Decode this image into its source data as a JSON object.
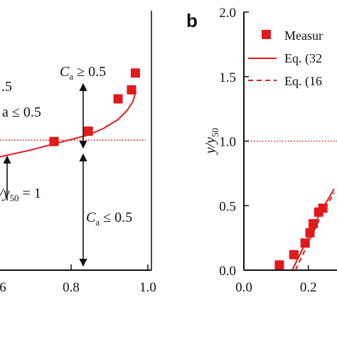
{
  "chart_data": [
    {
      "type": "scatter",
      "panel": "a",
      "panel_label_visible": false,
      "xlabel": "",
      "ylabel": "",
      "xlim": [
        0.5,
        1.0
      ],
      "ylim": [
        -0.05,
        2.0
      ],
      "x_ticks": [
        "6",
        "0.8",
        "1.0"
      ],
      "series": [
        {
          "name": "",
          "style": "square-markers",
          "color": "#e0191b",
          "points": [
            [
              0.685,
              0.99
            ],
            [
              0.8,
              1.07
            ],
            [
              0.9,
              1.32
            ],
            [
              0.945,
              1.39
            ],
            [
              0.958,
              1.52
            ]
          ]
        },
        {
          "name": "",
          "style": "solid-line",
          "color": "#e0191b",
          "points": [
            [
              0.5,
              0.87
            ],
            [
              0.6,
              0.92
            ],
            [
              0.7,
              0.98
            ],
            [
              0.8,
              1.04
            ],
            [
              0.85,
              1.09
            ],
            [
              0.9,
              1.16
            ],
            [
              0.93,
              1.23
            ],
            [
              0.95,
              1.3
            ],
            [
              0.96,
              1.38
            ]
          ]
        }
      ],
      "reference_line": {
        "y": 1.0,
        "style": "dotted",
        "color": "#e0191b"
      },
      "annotations": [
        {
          "text": ".5"
        },
        {
          "text": "a ≤ 0.5"
        },
        {
          "text": "C",
          "sub": "a",
          "rest": " ≥ 0.5"
        },
        {
          "text": "y",
          "sub": "50",
          "rest": " = 1",
          "prefix": "/"
        },
        {
          "text": "C",
          "sub": "a",
          "rest": " ≤ 0.5"
        }
      ]
    },
    {
      "type": "scatter",
      "panel": "b",
      "panel_label": "b",
      "xlabel": "",
      "ylabel": "y/y50",
      "ylabel_parts": {
        "main": "y/y",
        "sub": "50"
      },
      "xlim": [
        0.0,
        0.28
      ],
      "ylim": [
        0.0,
        2.0
      ],
      "x_ticks": [
        "0.0",
        "0.2"
      ],
      "y_ticks": [
        "0.0",
        "0.5",
        "1.0",
        "1.5",
        "2.0"
      ],
      "reference_line": {
        "y": 1.0,
        "style": "dotted",
        "color": "#e0191b"
      },
      "legend": {
        "position": "top-right",
        "entries": [
          {
            "label": "Measur",
            "style": "square-markers",
            "color": "#e0191b"
          },
          {
            "label": "Eq. (32",
            "style": "solid-line",
            "color": "#e0191b"
          },
          {
            "label": "Eq. (16",
            "style": "dashed-line",
            "color": "#e0191b"
          }
        ]
      },
      "series": [
        {
          "name": "Measur",
          "style": "square-markers",
          "color": "#e0191b",
          "points": [
            [
              0.11,
              0.04
            ],
            [
              0.155,
              0.12
            ],
            [
              0.19,
              0.21
            ],
            [
              0.205,
              0.29
            ],
            [
              0.215,
              0.36
            ],
            [
              0.232,
              0.45
            ],
            [
              0.245,
              0.48
            ]
          ]
        },
        {
          "name": "Eq. (32",
          "style": "solid-line",
          "color": "#e0191b",
          "points": [
            [
              0.15,
              0.0
            ],
            [
              0.24,
              0.46
            ],
            [
              0.28,
              0.63
            ]
          ]
        },
        {
          "name": "Eq. (16",
          "style": "dashed-line",
          "color": "#e0191b",
          "points": [
            [
              0.16,
              0.0
            ],
            [
              0.245,
              0.45
            ],
            [
              0.28,
              0.6
            ]
          ]
        }
      ]
    }
  ]
}
